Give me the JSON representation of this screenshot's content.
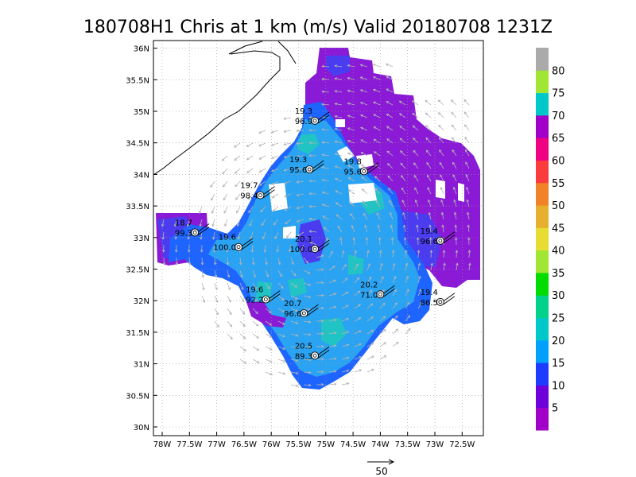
{
  "title": "180708H1 Chris at 1 km (m/s) Valid 20180708 1231Z",
  "lat_ticks": [
    "30N",
    "30.5N",
    "31N",
    "31.5N",
    "32N",
    "32.5N",
    "33N",
    "33.5N",
    "34N",
    "34.5N",
    "35N",
    "35.5N",
    "36N"
  ],
  "lon_ticks": [
    "78W",
    "77.5W",
    "77W",
    "76.5W",
    "76W",
    "75.5W",
    "75W",
    "74.5W",
    "74W",
    "73.5W",
    "73W",
    "72.5W"
  ],
  "colorbar": {
    "labels": [
      "5",
      "10",
      "15",
      "20",
      "25",
      "30",
      "35",
      "40",
      "45",
      "50",
      "55",
      "60",
      "65",
      "70",
      "75",
      "80"
    ],
    "colors": [
      "#a000c8",
      "#6e00dc",
      "#1e3cff",
      "#00a0ff",
      "#00c8c8",
      "#00d28c",
      "#00dc00",
      "#a0e632",
      "#e6dc32",
      "#e6af2d",
      "#f08228",
      "#fa3c3c",
      "#f00082",
      "#a000c8",
      "#00c8c8",
      "#a0e632",
      "#aaaaaa"
    ]
  },
  "field_colors": {
    "purple": "#8a1ad6",
    "blue_violet": "#4b3cf0",
    "blue": "#1e64ff",
    "light_blue": "#2aa3f2",
    "cyan": "#20c4c4"
  },
  "stations": [
    {
      "t": "19.3",
      "p": "96.9",
      "lon": -75.2,
      "lat": 34.85
    },
    {
      "t": "19.3",
      "p": "95.6",
      "lon": -75.3,
      "lat": 34.08
    },
    {
      "t": "19.8",
      "p": "95.6",
      "lon": -74.3,
      "lat": 34.05
    },
    {
      "t": "19.7",
      "p": "98.4",
      "lon": -76.2,
      "lat": 33.67
    },
    {
      "t": "18.7",
      "p": "99.3",
      "lon": -77.4,
      "lat": 33.08
    },
    {
      "t": "19.6",
      "p": "100.0",
      "lon": -76.6,
      "lat": 32.85
    },
    {
      "t": "20.1",
      "p": "100.0",
      "lon": -75.2,
      "lat": 32.82
    },
    {
      "t": "19.4",
      "p": "96.6",
      "lon": -72.9,
      "lat": 32.95
    },
    {
      "t": "20.2",
      "p": "71.0",
      "lon": -74.0,
      "lat": 32.1
    },
    {
      "t": "19.6",
      "p": "92.2",
      "lon": -76.1,
      "lat": 32.02
    },
    {
      "t": "19.4",
      "p": "86.5",
      "lon": -72.9,
      "lat": 31.98
    },
    {
      "t": "20.7",
      "p": "96.6",
      "lon": -75.4,
      "lat": 31.8
    },
    {
      "t": "20.5",
      "p": "89.3",
      "lon": -75.2,
      "lat": 31.13
    }
  ],
  "reference_vector": {
    "label": "50"
  }
}
